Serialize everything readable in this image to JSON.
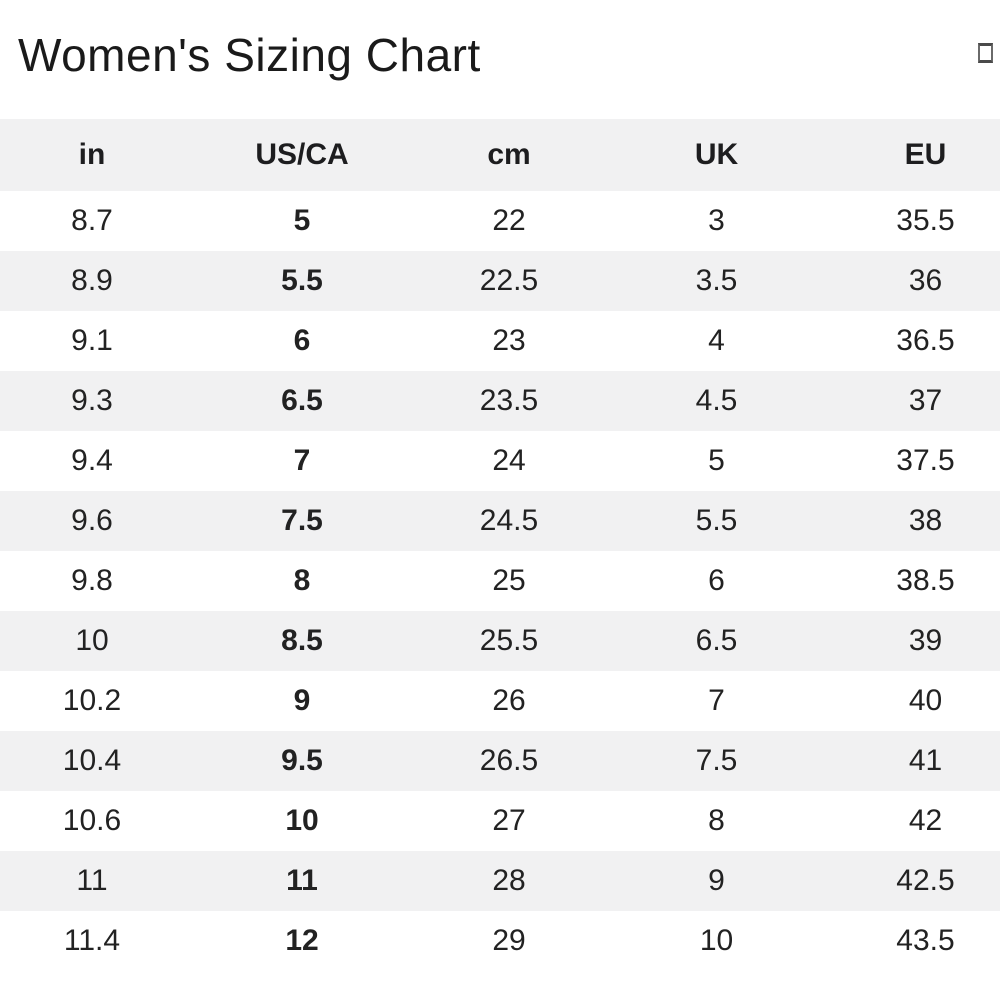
{
  "page": {
    "title": "Women's Sizing Chart",
    "corner_glyph": "placeholder-box"
  },
  "colors": {
    "stripe": "#f1f1f2",
    "header_bg": "#f1f1f2",
    "text": "#222222",
    "title": "#1a1a1a",
    "background": "#ffffff"
  },
  "table": {
    "columns": [
      "in",
      "US/CA",
      "cm",
      "UK",
      "EU"
    ],
    "bold_column_index": 1,
    "rows": [
      [
        "8.7",
        "5",
        "22",
        "3",
        "35.5"
      ],
      [
        "8.9",
        "5.5",
        "22.5",
        "3.5",
        "36"
      ],
      [
        "9.1",
        "6",
        "23",
        "4",
        "36.5"
      ],
      [
        "9.3",
        "6.5",
        "23.5",
        "4.5",
        "37"
      ],
      [
        "9.4",
        "7",
        "24",
        "5",
        "37.5"
      ],
      [
        "9.6",
        "7.5",
        "24.5",
        "5.5",
        "38"
      ],
      [
        "9.8",
        "8",
        "25",
        "6",
        "38.5"
      ],
      [
        "10",
        "8.5",
        "25.5",
        "6.5",
        "39"
      ],
      [
        "10.2",
        "9",
        "26",
        "7",
        "40"
      ],
      [
        "10.4",
        "9.5",
        "26.5",
        "7.5",
        "41"
      ],
      [
        "10.6",
        "10",
        "27",
        "8",
        "42"
      ],
      [
        "11",
        "11",
        "28",
        "9",
        "42.5"
      ],
      [
        "11.4",
        "12",
        "29",
        "10",
        "43.5"
      ]
    ]
  }
}
